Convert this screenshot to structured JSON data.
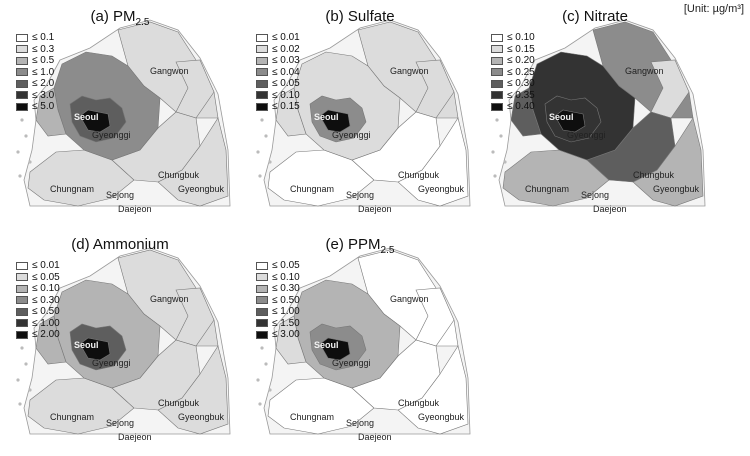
{
  "unit_label": "[Unit: µg/m³]",
  "shade_colors": [
    "#ffffff",
    "#dcdcdc",
    "#b4b4b4",
    "#8c8c8c",
    "#5e5e5e",
    "#333333",
    "#0e0e0e"
  ],
  "panels": [
    {
      "title_main": "(a) PM",
      "title_sub": "2.5",
      "legend": [
        "≤ 0.1",
        "≤ 0.3",
        "≤ 0.5",
        "≤ 1.0",
        "≤ 2.0",
        "≤ 3.0",
        "≤ 5.0"
      ],
      "regions": {
        "seoul": 6,
        "inner": 4,
        "gyeonggi": 3,
        "gangwon": 1,
        "chungbuk": 1,
        "chungnam": 1,
        "gyeongbuk": 1,
        "west": 2,
        "east": 1
      }
    },
    {
      "title_main": "(b) Sulfate",
      "title_sub": "",
      "legend": [
        "≤ 0.01",
        "≤ 0.02",
        "≤ 0.03",
        "≤ 0.04",
        "≤ 0.05",
        "≤ 0.10",
        "≤ 0.15"
      ],
      "regions": {
        "seoul": 6,
        "inner": 3,
        "gyeonggi": 1,
        "gangwon": 1,
        "chungbuk": 0,
        "chungnam": 0,
        "gyeongbuk": 0,
        "west": 1,
        "east": 1
      }
    },
    {
      "title_main": "(c) Nitrate",
      "title_sub": "",
      "legend": [
        "≤ 0.10",
        "≤ 0.15",
        "≤ 0.20",
        "≤ 0.25",
        "≤ 0.30",
        "≤ 0.35",
        "≤ 0.40"
      ],
      "regions": {
        "seoul": 6,
        "inner": 5,
        "gyeonggi": 5,
        "gangwon": 3,
        "chungbuk": 4,
        "chungnam": 2,
        "gyeongbuk": 2,
        "west": 4,
        "east": 1
      }
    },
    {
      "title_main": "(d) Ammonium",
      "title_sub": "",
      "legend": [
        "≤ 0.01",
        "≤ 0.05",
        "≤ 0.10",
        "≤ 0.30",
        "≤ 0.50",
        "≤ 1.00",
        "≤ 2.00"
      ],
      "regions": {
        "seoul": 6,
        "inner": 4,
        "gyeonggi": 2,
        "gangwon": 1,
        "chungbuk": 1,
        "chungnam": 1,
        "gyeongbuk": 1,
        "west": 2,
        "east": 1
      }
    },
    {
      "title_main": "(e) PPM",
      "title_sub": "2.5",
      "legend": [
        "≤ 0.05",
        "≤ 0.10",
        "≤ 0.30",
        "≤ 0.50",
        "≤ 1.00",
        "≤ 1.50",
        "≤ 3.00"
      ],
      "regions": {
        "seoul": 6,
        "inner": 3,
        "gyeonggi": 2,
        "gangwon": 0,
        "chungbuk": 0,
        "chungnam": 0,
        "gyeongbuk": 0,
        "west": 1,
        "east": 0
      }
    }
  ],
  "place_labels": {
    "seoul": "Seoul",
    "gyeonggi": "Gyeonggi",
    "gangwon": "Gangwon",
    "chungbuk": "Chungbuk",
    "chungnam": "Chungnam",
    "sejong": "Sejong",
    "daejeon": "Daejeon",
    "gyeongbuk": "Gyeongbuk"
  }
}
